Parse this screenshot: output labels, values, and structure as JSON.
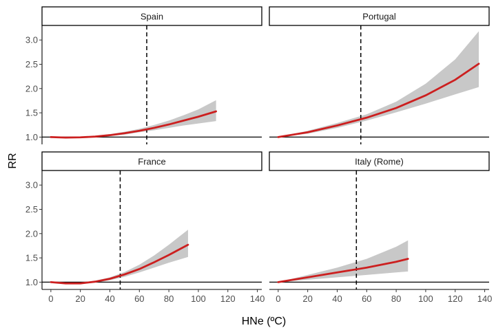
{
  "chart_data": {
    "type": "line",
    "xlabel": "HNe (ºC)",
    "ylabel": "RR",
    "xlim": [
      -6,
      143
    ],
    "ylim": [
      0.85,
      3.3
    ],
    "x_ticks": [
      0,
      20,
      40,
      60,
      80,
      100,
      120,
      140
    ],
    "y_ticks": [
      1.0,
      1.5,
      2.0,
      2.5,
      3.0
    ],
    "reference_line_y": 1.0,
    "colors": {
      "curve": "#cc1f1f",
      "ci": "#c8c8c8"
    },
    "panels": [
      {
        "name": "Spain",
        "threshold_x": 65,
        "series": {
          "x": [
            0,
            10,
            20,
            30,
            40,
            50,
            60,
            70,
            80,
            90,
            100,
            112
          ],
          "y": [
            1.0,
            0.99,
            0.995,
            1.01,
            1.04,
            1.08,
            1.13,
            1.19,
            1.26,
            1.34,
            1.42,
            1.53
          ],
          "lower": [
            1.0,
            0.985,
            0.985,
            0.995,
            1.02,
            1.05,
            1.1,
            1.14,
            1.19,
            1.24,
            1.28,
            1.33
          ],
          "upper": [
            1.0,
            0.995,
            1.005,
            1.025,
            1.06,
            1.11,
            1.17,
            1.25,
            1.34,
            1.45,
            1.57,
            1.76
          ]
        }
      },
      {
        "name": "Portugal",
        "threshold_x": 56,
        "series": {
          "x": [
            0,
            20,
            40,
            60,
            80,
            100,
            120,
            136
          ],
          "y": [
            1.0,
            1.1,
            1.24,
            1.4,
            1.6,
            1.86,
            2.18,
            2.51
          ],
          "lower": [
            1.0,
            1.07,
            1.19,
            1.34,
            1.51,
            1.69,
            1.88,
            2.03
          ],
          "upper": [
            1.0,
            1.13,
            1.29,
            1.47,
            1.73,
            2.1,
            2.6,
            3.18
          ]
        }
      },
      {
        "name": "France",
        "threshold_x": 47,
        "series": {
          "x": [
            0,
            10,
            20,
            30,
            40,
            50,
            60,
            70,
            80,
            93
          ],
          "y": [
            1.0,
            0.975,
            0.975,
            1.01,
            1.07,
            1.16,
            1.27,
            1.41,
            1.56,
            1.77
          ],
          "lower": [
            1.0,
            0.965,
            0.96,
            0.99,
            1.04,
            1.11,
            1.2,
            1.3,
            1.4,
            1.52
          ],
          "upper": [
            1.0,
            0.985,
            0.99,
            1.03,
            1.1,
            1.21,
            1.36,
            1.55,
            1.77,
            2.08
          ]
        }
      },
      {
        "name": "Italy (Rome)",
        "threshold_x": 53,
        "series": {
          "x": [
            0,
            20,
            40,
            60,
            80,
            88
          ],
          "y": [
            1.0,
            1.1,
            1.2,
            1.3,
            1.42,
            1.48
          ],
          "lower": [
            1.0,
            1.05,
            1.1,
            1.15,
            1.2,
            1.22
          ],
          "upper": [
            1.0,
            1.15,
            1.3,
            1.48,
            1.73,
            1.86
          ]
        }
      }
    ]
  }
}
